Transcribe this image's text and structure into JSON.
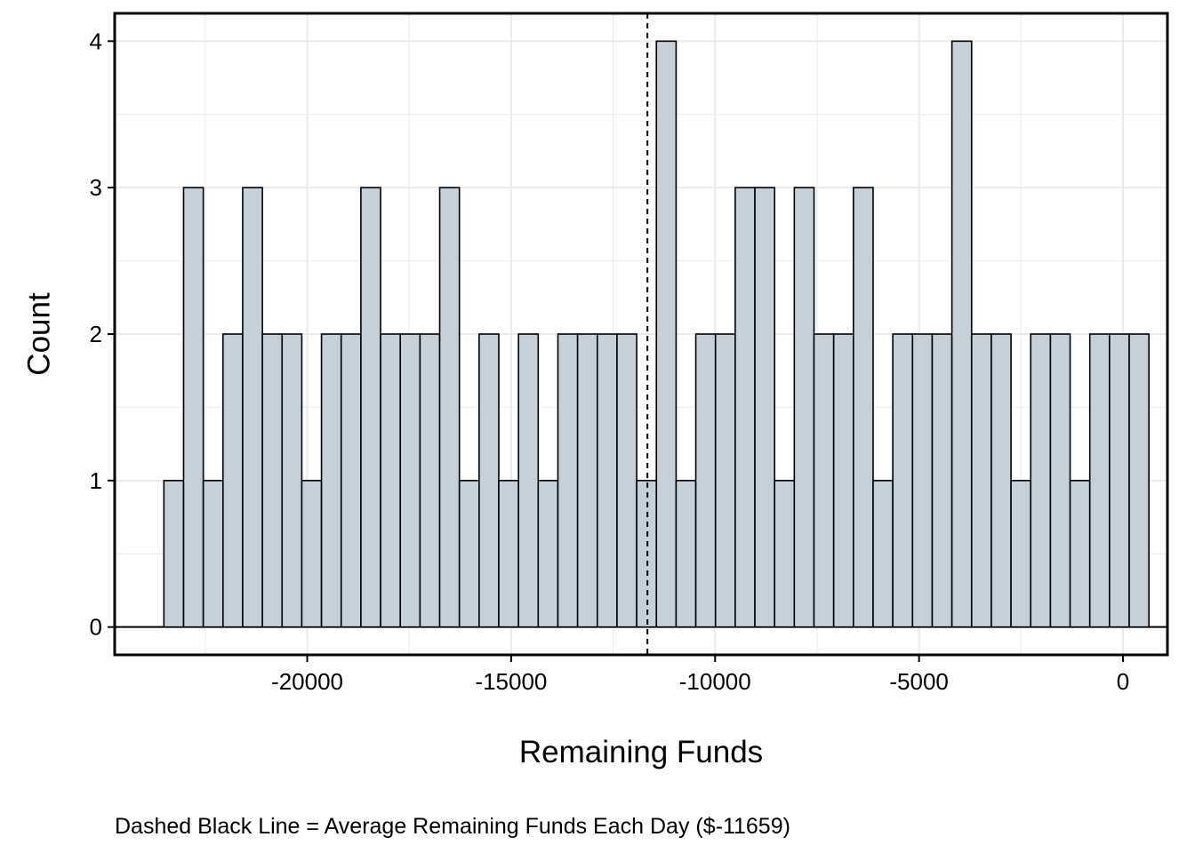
{
  "chart_data": {
    "type": "bar",
    "subtype": "histogram",
    "xlabel": "Remaining Funds",
    "ylabel": "Count",
    "caption": "Dashed Black Line = Average Remaining Funds Each Day ($-11659)",
    "bin_width": 483,
    "bin_start": -23514,
    "counts": [
      1,
      3,
      1,
      2,
      3,
      2,
      2,
      1,
      2,
      2,
      3,
      2,
      2,
      2,
      3,
      1,
      2,
      1,
      2,
      1,
      2,
      2,
      2,
      2,
      1,
      4,
      1,
      2,
      2,
      3,
      3,
      1,
      3,
      2,
      2,
      3,
      1,
      2,
      2,
      2,
      4,
      2,
      2,
      1,
      2,
      2,
      1,
      2,
      2,
      2
    ],
    "mean_line": -11659,
    "xlim": [
      -24720,
      1090
    ],
    "ylim": [
      -0.19,
      4.19
    ],
    "x_ticks": [
      -20000,
      -15000,
      -10000,
      -5000,
      0
    ],
    "x_tick_labels": [
      "-20000",
      "-15000",
      "-10000",
      "-5000",
      "0"
    ],
    "y_ticks": [
      0,
      1,
      2,
      3,
      4
    ],
    "y_tick_labels": [
      "0",
      "1",
      "2",
      "3",
      "4"
    ],
    "grid": true,
    "colors": {
      "bar_fill": "#c5d0d8",
      "bar_stroke": "#000000",
      "grid": "#ebebeb"
    }
  }
}
